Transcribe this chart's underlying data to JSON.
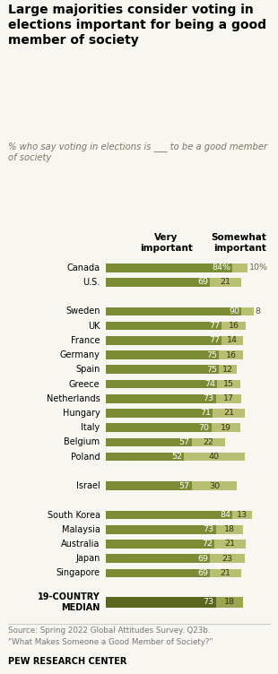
{
  "title": "Large majorities consider voting in\nelections important for being a good\nmember of society",
  "subtitle": "% who say voting in elections is ___ to be a good member\nof society",
  "categories": [
    "Canada",
    "U.S.",
    "",
    "Sweden",
    "UK",
    "France",
    "Germany",
    "Spain",
    "Greece",
    "Netherlands",
    "Hungary",
    "Italy",
    "Belgium",
    "Poland",
    "",
    "Israel",
    "",
    "South Korea",
    "Malaysia",
    "Australia",
    "Japan",
    "Singapore",
    "",
    "19-COUNTRY\nMEDIAN"
  ],
  "very_important": [
    84,
    69,
    null,
    90,
    77,
    77,
    75,
    75,
    74,
    73,
    71,
    70,
    57,
    52,
    null,
    57,
    null,
    84,
    73,
    72,
    69,
    69,
    null,
    73
  ],
  "somewhat_important": [
    10,
    21,
    null,
    8,
    16,
    14,
    16,
    12,
    15,
    17,
    21,
    19,
    22,
    40,
    null,
    30,
    null,
    13,
    18,
    21,
    23,
    21,
    null,
    18
  ],
  "very_color": "#7b8c35",
  "somewhat_color": "#b8be72",
  "median_very_color": "#5a6620",
  "median_somewhat_color": "#9ba44e",
  "source_line1": "Source: Spring 2022 Global Attitudes Survey. Q23b.",
  "source_line2": "\"What Makes Someone a Good Member of Society?\"",
  "footer": "PEW RESEARCH CENTER",
  "col_header_very": "Very\nimportant",
  "col_header_somewhat": "Somewhat\nimportant",
  "background_color": "#f8f6f1"
}
